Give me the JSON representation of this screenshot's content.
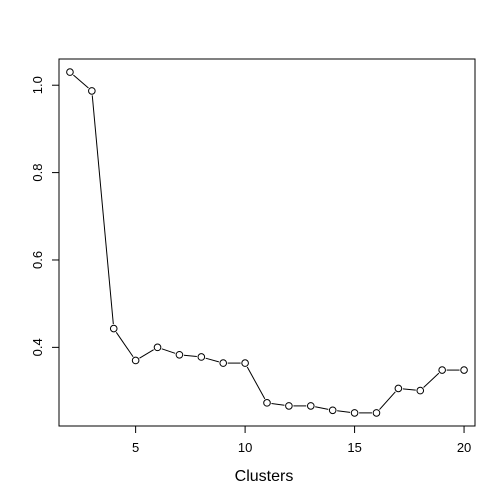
{
  "chart_data": {
    "type": "line",
    "title": "",
    "xlabel": "Clusters",
    "ylabel": "",
    "x": [
      2,
      3,
      4,
      5,
      6,
      7,
      8,
      9,
      10,
      11,
      12,
      13,
      14,
      15,
      16,
      17,
      18,
      19,
      20
    ],
    "series": [
      {
        "values": [
          1.03,
          0.987,
          0.443,
          0.37,
          0.4,
          0.383,
          0.378,
          0.364,
          0.364,
          0.273,
          0.266,
          0.266,
          0.256,
          0.25,
          0.25,
          0.306,
          0.301,
          0.348,
          0.348
        ]
      }
    ],
    "xlim": [
      1.5,
      20.5
    ],
    "ylim": [
      0.22,
      1.06
    ],
    "xticks": [
      5,
      10,
      15,
      20
    ],
    "yticks": [
      0.4,
      0.6,
      0.8,
      1.0
    ],
    "xtick_labels": [
      "5",
      "10",
      "15",
      "20"
    ],
    "ytick_labels": [
      "0.4",
      "0.6",
      "0.8",
      "1.0"
    ],
    "grid": false,
    "markers": "open-circle",
    "line_color": "#000000"
  }
}
